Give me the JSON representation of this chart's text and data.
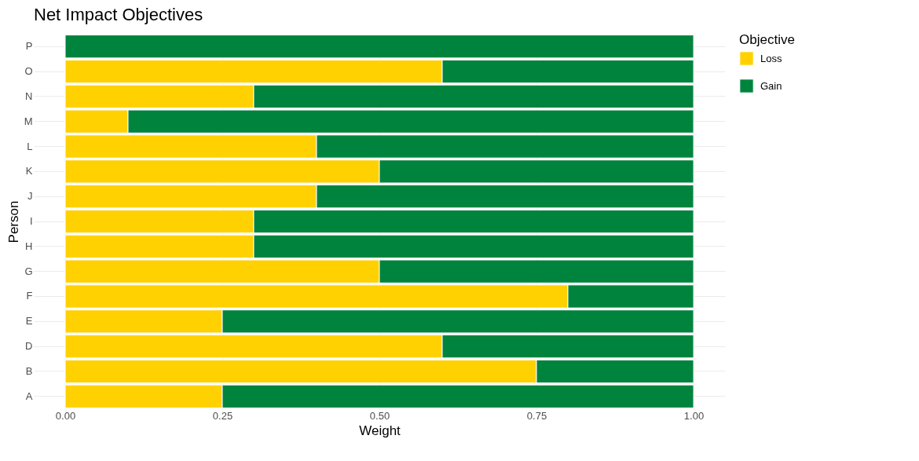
{
  "chart_data": {
    "type": "bar",
    "orientation": "horizontal",
    "stacked": true,
    "title": "Net Impact Objectives",
    "xlabel": "Weight",
    "ylabel": "Person",
    "legend_title": "Objective",
    "categories": [
      "P",
      "O",
      "N",
      "M",
      "L",
      "K",
      "J",
      "I",
      "H",
      "G",
      "F",
      "E",
      "D",
      "B",
      "A"
    ],
    "series": [
      {
        "name": "Loss",
        "color": "#ffd100",
        "values": [
          0,
          0.6,
          0.3,
          0.1,
          0.4,
          0.5,
          0.4,
          0.3,
          0.3,
          0.5,
          0.8,
          0.25,
          0.6,
          0.75,
          0.25
        ]
      },
      {
        "name": "Gain",
        "color": "#00843d",
        "values": [
          1,
          0.4,
          0.7,
          0.9,
          0.6,
          0.5,
          0.6,
          0.7,
          0.7,
          0.5,
          0.2,
          0.75,
          0.4,
          0.25,
          0.75
        ]
      }
    ],
    "xlim": [
      -0.05,
      1.05
    ],
    "xticks": [
      {
        "value": 0,
        "label": "0.00"
      },
      {
        "value": 0.25,
        "label": "0.25"
      },
      {
        "value": 0.5,
        "label": "0.50"
      },
      {
        "value": 0.75,
        "label": "0.75"
      },
      {
        "value": 1,
        "label": "1.00"
      }
    ],
    "grid": true,
    "legend": "right"
  }
}
